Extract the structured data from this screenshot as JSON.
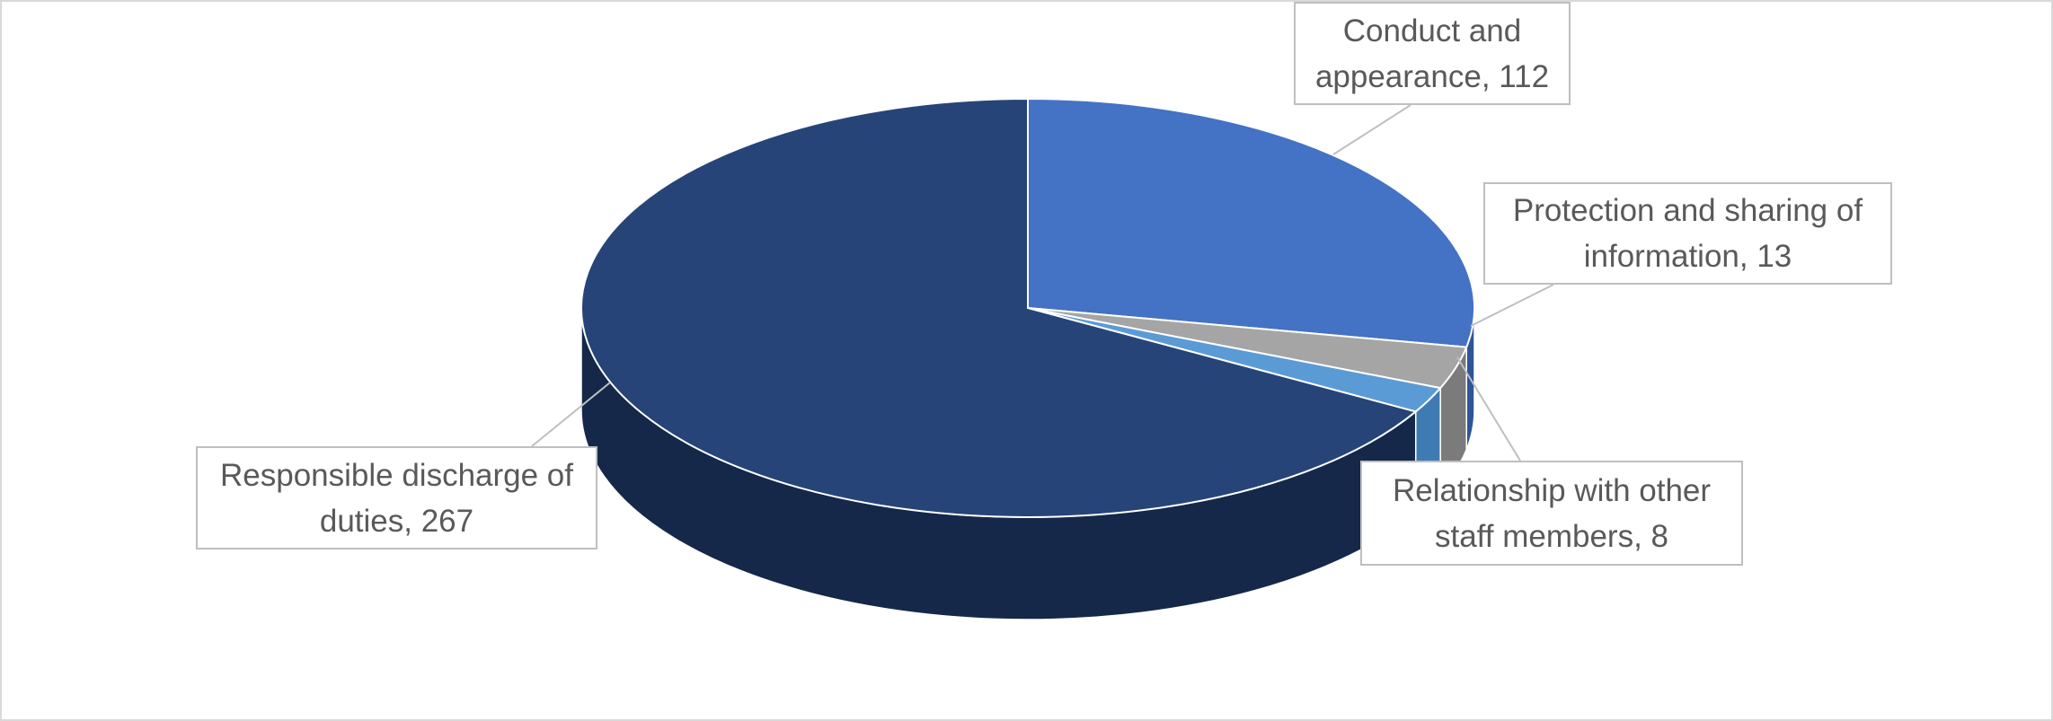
{
  "chart_data": {
    "type": "pie3d",
    "values": [
      112,
      13,
      8,
      267
    ],
    "value_labels": [
      "Conduct and appearance, 112",
      "Protection and sharing of information, 13",
      "Relationship with other staff members, 8",
      "Responsible discharge of duties, 267"
    ],
    "colors": [
      "#4472c4",
      "#a5a5a5",
      "#5b9bd5",
      "#264478"
    ],
    "side_colors": [
      "#2f5597",
      "#7b7b7b",
      "#3f7bb3",
      "#15284a"
    ]
  }
}
